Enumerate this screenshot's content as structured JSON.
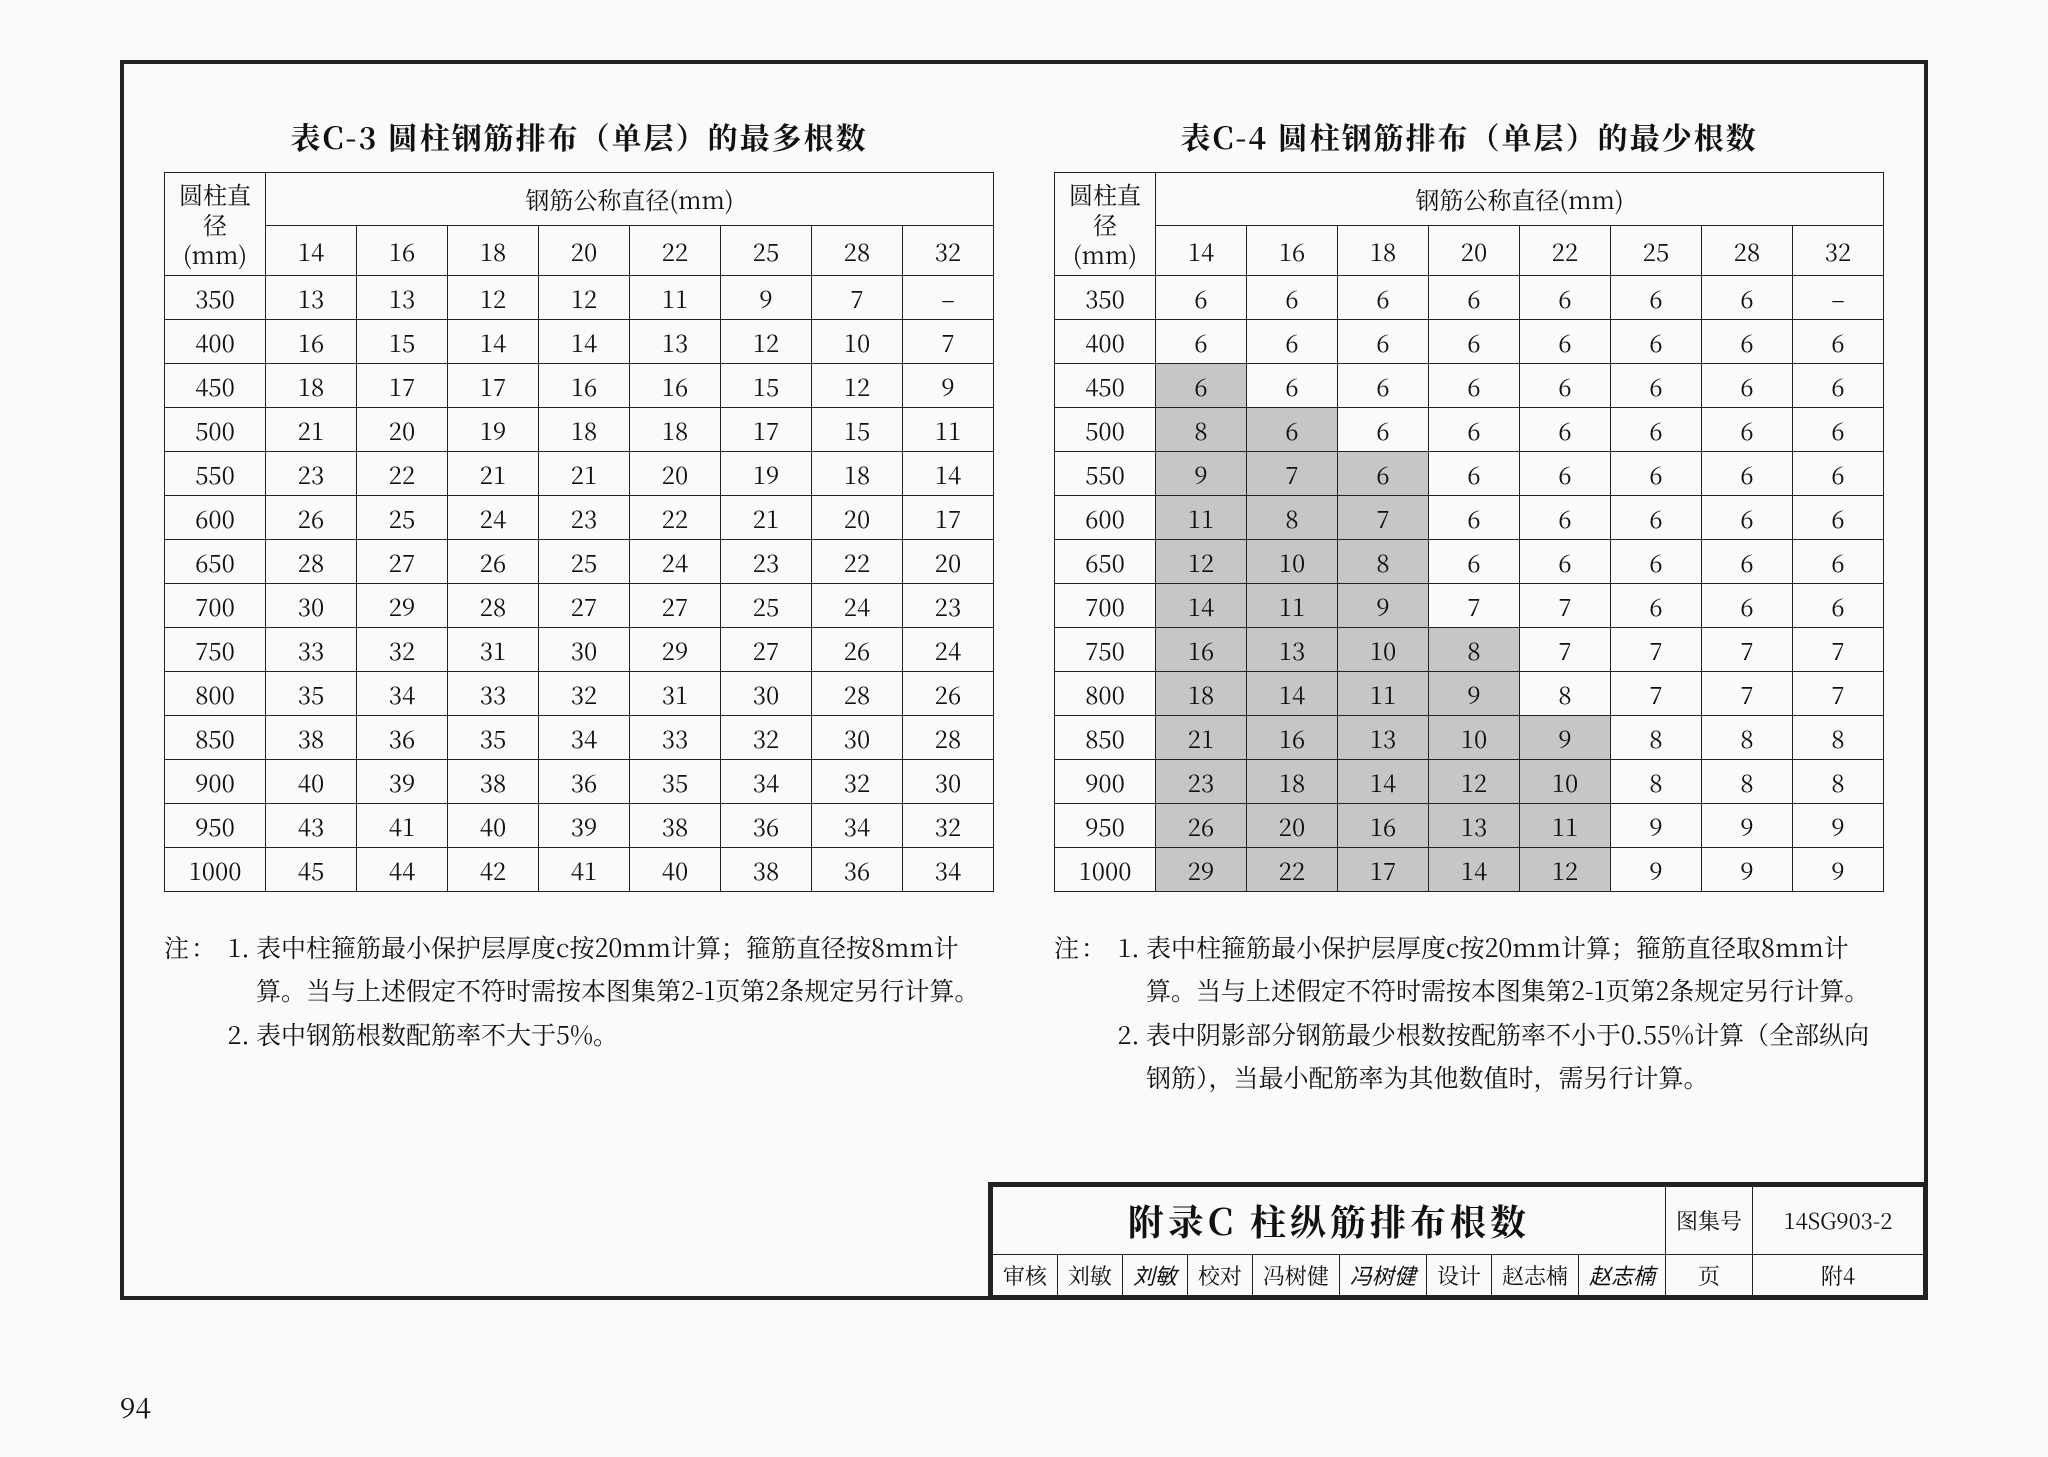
{
  "page_number": "94",
  "styling": {
    "background_color": "#fafafa",
    "border_color": "#222222",
    "shade_color": "#c6c6c6",
    "title_fontsize_pt": 30,
    "body_fontsize_pt": 24,
    "note_fontsize_pt": 25
  },
  "left": {
    "title": "表C-3  圆柱钢筋排布（单层）的最多根数",
    "row_header": "圆柱直径\n(mm)",
    "col_group": "钢筋公称直径(mm)",
    "diam_cols": [
      "14",
      "16",
      "18",
      "20",
      "22",
      "25",
      "28",
      "32"
    ],
    "row_labels": [
      "350",
      "400",
      "450",
      "500",
      "550",
      "600",
      "650",
      "700",
      "750",
      "800",
      "850",
      "900",
      "950",
      "1000"
    ],
    "rows": [
      [
        "13",
        "13",
        "12",
        "12",
        "11",
        "9",
        "7",
        "–"
      ],
      [
        "16",
        "15",
        "14",
        "14",
        "13",
        "12",
        "10",
        "7"
      ],
      [
        "18",
        "17",
        "17",
        "16",
        "16",
        "15",
        "12",
        "9"
      ],
      [
        "21",
        "20",
        "19",
        "18",
        "18",
        "17",
        "15",
        "11"
      ],
      [
        "23",
        "22",
        "21",
        "21",
        "20",
        "19",
        "18",
        "14"
      ],
      [
        "26",
        "25",
        "24",
        "23",
        "22",
        "21",
        "20",
        "17"
      ],
      [
        "28",
        "27",
        "26",
        "25",
        "24",
        "23",
        "22",
        "20"
      ],
      [
        "30",
        "29",
        "28",
        "27",
        "27",
        "25",
        "24",
        "23"
      ],
      [
        "33",
        "32",
        "31",
        "30",
        "29",
        "27",
        "26",
        "24"
      ],
      [
        "35",
        "34",
        "33",
        "32",
        "31",
        "30",
        "28",
        "26"
      ],
      [
        "38",
        "36",
        "35",
        "34",
        "33",
        "32",
        "30",
        "28"
      ],
      [
        "40",
        "39",
        "38",
        "36",
        "35",
        "34",
        "32",
        "30"
      ],
      [
        "43",
        "41",
        "40",
        "39",
        "38",
        "36",
        "34",
        "32"
      ],
      [
        "45",
        "44",
        "42",
        "41",
        "40",
        "38",
        "36",
        "34"
      ]
    ],
    "note_label": "注：",
    "notes": [
      "表中柱箍筋最小保护层厚度c按20mm计算；箍筋直径按8mm计算。当与上述假定不符时需按本图集第2-1页第2条规定另行计算。",
      "表中钢筋根数配筋率不大于5%。"
    ]
  },
  "right": {
    "title": "表C-4  圆柱钢筋排布（单层）的最少根数",
    "row_header": "圆柱直径\n(mm)",
    "col_group": "钢筋公称直径(mm)",
    "diam_cols": [
      "14",
      "16",
      "18",
      "20",
      "22",
      "25",
      "28",
      "32"
    ],
    "row_labels": [
      "350",
      "400",
      "450",
      "500",
      "550",
      "600",
      "650",
      "700",
      "750",
      "800",
      "850",
      "900",
      "950",
      "1000"
    ],
    "rows": [
      [
        "6",
        "6",
        "6",
        "6",
        "6",
        "6",
        "6",
        "–"
      ],
      [
        "6",
        "6",
        "6",
        "6",
        "6",
        "6",
        "6",
        "6"
      ],
      [
        "6",
        "6",
        "6",
        "6",
        "6",
        "6",
        "6",
        "6"
      ],
      [
        "8",
        "6",
        "6",
        "6",
        "6",
        "6",
        "6",
        "6"
      ],
      [
        "9",
        "7",
        "6",
        "6",
        "6",
        "6",
        "6",
        "6"
      ],
      [
        "11",
        "8",
        "7",
        "6",
        "6",
        "6",
        "6",
        "6"
      ],
      [
        "12",
        "10",
        "8",
        "6",
        "6",
        "6",
        "6",
        "6"
      ],
      [
        "14",
        "11",
        "9",
        "7",
        "7",
        "6",
        "6",
        "6"
      ],
      [
        "16",
        "13",
        "10",
        "8",
        "7",
        "7",
        "7",
        "7"
      ],
      [
        "18",
        "14",
        "11",
        "9",
        "8",
        "7",
        "7",
        "7"
      ],
      [
        "21",
        "16",
        "13",
        "10",
        "9",
        "8",
        "8",
        "8"
      ],
      [
        "23",
        "18",
        "14",
        "12",
        "10",
        "8",
        "8",
        "8"
      ],
      [
        "26",
        "20",
        "16",
        "13",
        "11",
        "9",
        "9",
        "9"
      ],
      [
        "29",
        "22",
        "17",
        "14",
        "12",
        "9",
        "9",
        "9"
      ]
    ],
    "shaded": [
      [],
      [],
      [
        0
      ],
      [
        0,
        1
      ],
      [
        0,
        1,
        2
      ],
      [
        0,
        1,
        2
      ],
      [
        0,
        1,
        2
      ],
      [
        0,
        1,
        2
      ],
      [
        0,
        1,
        2,
        3
      ],
      [
        0,
        1,
        2,
        3
      ],
      [
        0,
        1,
        2,
        3,
        4
      ],
      [
        0,
        1,
        2,
        3,
        4
      ],
      [
        0,
        1,
        2,
        3,
        4
      ],
      [
        0,
        1,
        2,
        3,
        4
      ]
    ],
    "note_label": "注：",
    "notes": [
      "表中柱箍筋最小保护层厚度c按20mm计算；箍筋直径取8mm计算。当与上述假定不符时需按本图集第2-1页第2条规定另行计算。",
      "表中阴影部分钢筋最少根数按配筋率不小于0.55%计算（全部纵向钢筋），当最小配筋率为其他数值时，需另行计算。"
    ]
  },
  "titleblock": {
    "main": "附录C  柱纵筋排布根数",
    "atlas_lbl": "图集号",
    "atlas_no": "14SG903-2",
    "review_lbl": "审核",
    "review_name": "刘敏",
    "review_sig": "刘敏",
    "check_lbl": "校对",
    "check_name": "冯树健",
    "check_sig": "冯树健",
    "design_lbl": "设计",
    "design_name": "赵志楠",
    "design_sig": "赵志楠",
    "page_lbl": "页",
    "page_no": "附4"
  }
}
